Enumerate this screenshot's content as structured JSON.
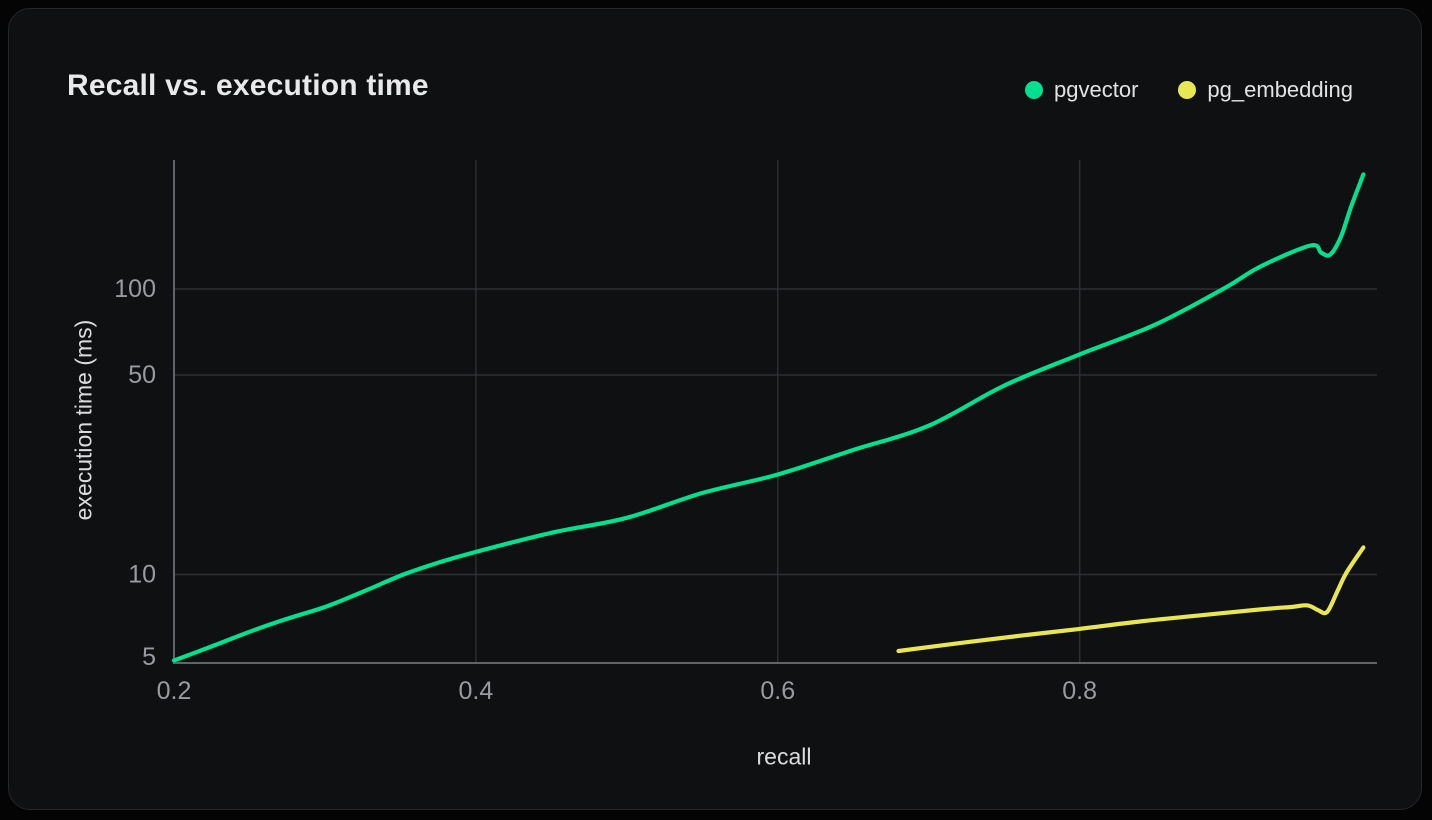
{
  "card": {
    "title": "Recall vs. execution time"
  },
  "legend": [
    {
      "label": "pgvector",
      "color": "#00e08e"
    },
    {
      "label": "pg_embedding",
      "color": "#e9e654"
    }
  ],
  "colors": {
    "page_background": "#040405",
    "card_background": "#0f1011",
    "grid": "#2e2e34",
    "axis_line": "#62626a",
    "tick_label": "#9a9aa1",
    "axis_title": "#dcdcde",
    "title_text": "#e9e9eb"
  },
  "chart_data": {
    "type": "line",
    "title": "Recall vs. execution time",
    "xlabel": "recall",
    "ylabel": "execution time (ms)",
    "x_domain": [
      0.2,
      0.997
    ],
    "y_domain": [
      4.9,
      283
    ],
    "y_scale": "log",
    "x_ticks": [
      0.2,
      0.4,
      0.6,
      0.8
    ],
    "y_ticks": [
      5,
      10,
      50,
      100
    ],
    "grid": true,
    "legend_position": "top-right",
    "series": [
      {
        "name": "pgvector",
        "color": "#00e08e",
        "points": [
          [
            0.2,
            5.0
          ],
          [
            0.225,
            5.6
          ],
          [
            0.25,
            6.3
          ],
          [
            0.275,
            7.0
          ],
          [
            0.3,
            7.7
          ],
          [
            0.325,
            8.7
          ],
          [
            0.352,
            10.0
          ],
          [
            0.375,
            11.0
          ],
          [
            0.4,
            12.0
          ],
          [
            0.45,
            14.0
          ],
          [
            0.5,
            15.8
          ],
          [
            0.55,
            19.3
          ],
          [
            0.6,
            22.4
          ],
          [
            0.65,
            27.3
          ],
          [
            0.7,
            33.2
          ],
          [
            0.75,
            45.9
          ],
          [
            0.8,
            59.0
          ],
          [
            0.85,
            75.0
          ],
          [
            0.895,
            100.0
          ],
          [
            0.92,
            120.0
          ],
          [
            0.953,
            142.0
          ],
          [
            0.96,
            134.0
          ],
          [
            0.966,
            132.0
          ],
          [
            0.973,
            152.0
          ],
          [
            0.98,
            195.0
          ],
          [
            0.988,
            252.0
          ]
        ]
      },
      {
        "name": "pg_embedding",
        "color": "#e9e654",
        "points": [
          [
            0.68,
            5.4
          ],
          [
            0.72,
            5.75
          ],
          [
            0.76,
            6.1
          ],
          [
            0.8,
            6.45
          ],
          [
            0.84,
            6.85
          ],
          [
            0.88,
            7.2
          ],
          [
            0.92,
            7.55
          ],
          [
            0.94,
            7.7
          ],
          [
            0.951,
            7.8
          ],
          [
            0.958,
            7.5
          ],
          [
            0.964,
            7.4
          ],
          [
            0.971,
            8.8
          ],
          [
            0.977,
            10.2
          ],
          [
            0.988,
            12.45
          ]
        ]
      }
    ]
  }
}
